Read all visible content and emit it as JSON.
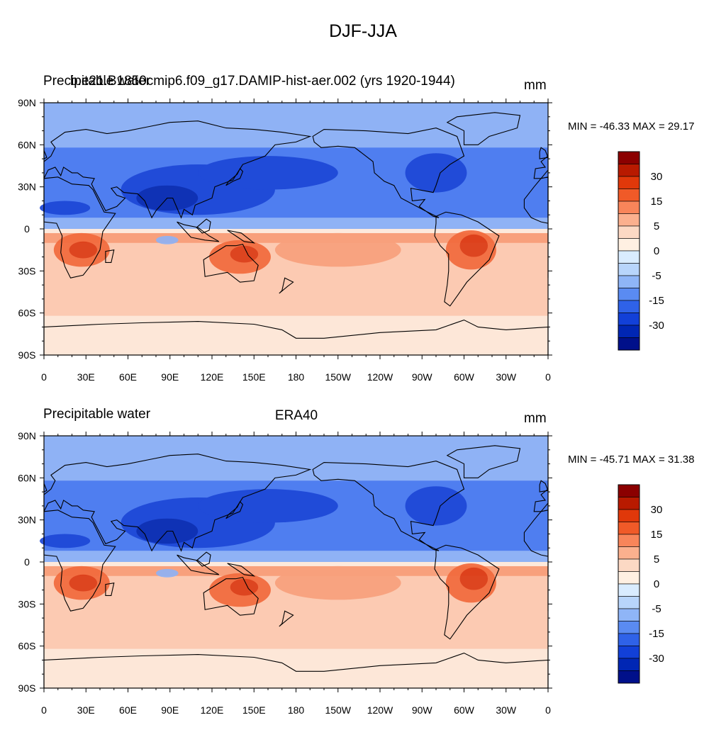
{
  "figure": {
    "title": "DJF-JJA"
  },
  "panels": [
    {
      "id": "top",
      "left_label": "Precipitable water",
      "center_label": "b.e21.B1850cmip6.f09_g17.DAMIP-hist-aer.002 (yrs 1920-1944)",
      "units": "mm",
      "min_max": "MIN = -46.33 MAX =  29.17"
    },
    {
      "id": "bottom",
      "left_label": "Precipitable water",
      "center_label": "ERA40",
      "units": "mm",
      "min_max": "MIN = -45.71 MAX =  31.38"
    }
  ],
  "axes": {
    "lat_ticks": [
      "90N",
      "60N",
      "30N",
      "0",
      "30S",
      "60S",
      "90S"
    ],
    "lon_ticks": [
      "0",
      "30E",
      "60E",
      "90E",
      "120E",
      "150E",
      "180",
      "150W",
      "120W",
      "90W",
      "60W",
      "30W",
      "0"
    ]
  },
  "colorbar": {
    "labels": [
      "30",
      "15",
      "5",
      "0",
      "-5",
      "-15",
      "-30"
    ],
    "colors": [
      "#8b0000",
      "#b81a00",
      "#e0380a",
      "#f05a28",
      "#f8855a",
      "#fbb08e",
      "#fcd9c4",
      "#fff0e2",
      "#d9ecff",
      "#b8d5fb",
      "#8fb5f7",
      "#5a8bf2",
      "#2f62e8",
      "#1240d8",
      "#0026b4",
      "#00108a"
    ]
  },
  "palette": {
    "land_outline": "#000000",
    "north_base": "#8fb2f5",
    "north_mid": "#4f7ef0",
    "north_deep": "#1d47d6",
    "north_core": "#0a2cb0",
    "south_base": "#fccab2",
    "south_mid": "#f8a07c",
    "south_deep": "#f26a3c",
    "south_core": "#db3a14",
    "equator_band": "#fde9dc",
    "antarctic": "#fde7d8"
  }
}
